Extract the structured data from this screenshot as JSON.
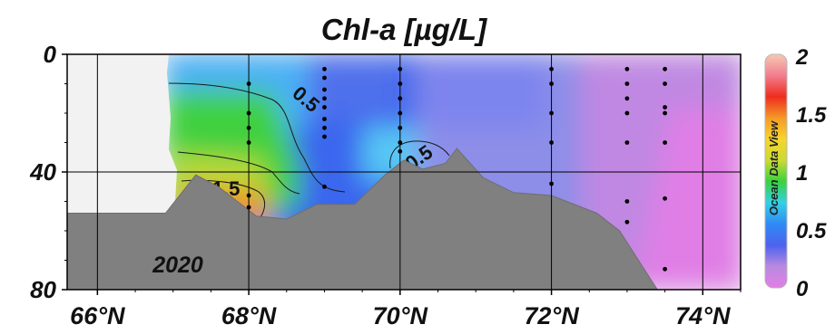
{
  "chart_data": {
    "type": "heatmap",
    "title": "Chl-a [µg/L]",
    "xlabel": "",
    "ylabel": "",
    "x_ticks": [
      "66°N",
      "68°N",
      "70°N",
      "72°N",
      "74°N"
    ],
    "x_tick_values": [
      66,
      68,
      70,
      72,
      74
    ],
    "y_ticks": [
      "0",
      "40",
      "80"
    ],
    "y_tick_values": [
      0,
      40,
      80
    ],
    "xlim": [
      65.6,
      74.5
    ],
    "ylim": [
      0,
      80
    ],
    "y_reversed": true,
    "grid": true,
    "year_label": "2020",
    "colorbar": {
      "ticks": [
        "0",
        "0.5",
        "1",
        "1.5",
        "2"
      ],
      "tick_values": [
        0,
        0.5,
        1,
        1.5,
        2
      ],
      "range": [
        0,
        2
      ],
      "label": "Ocean Data View",
      "colors": [
        "#e27ee6",
        "#b98ae0",
        "#4d62ee",
        "#2f8af5",
        "#33cfe6",
        "#3ad23e",
        "#c9da35",
        "#f6d52c",
        "#f59a27",
        "#ee2d1e",
        "#f27d8e",
        "#f7c9b4"
      ]
    },
    "contour_labels": [
      {
        "text": "0.5",
        "x": 68.7,
        "y": 17
      },
      {
        "text": "1.5",
        "x": 67.7,
        "y": 48
      },
      {
        "text": "0.5",
        "x": 70.3,
        "y": 37
      }
    ],
    "stations": [
      {
        "x": 68.0,
        "depths": [
          10,
          20,
          25,
          30,
          48,
          52
        ]
      },
      {
        "x": 69.0,
        "depths": [
          5,
          8,
          12,
          15,
          18,
          22,
          25,
          28,
          45
        ]
      },
      {
        "x": 70.0,
        "depths": [
          5,
          10,
          15,
          20,
          25,
          30,
          33
        ]
      },
      {
        "x": 72.0,
        "depths": [
          5,
          10,
          20,
          30,
          44
        ]
      },
      {
        "x": 73.0,
        "depths": [
          5,
          10,
          15,
          20,
          30,
          50,
          57
        ]
      },
      {
        "x": 73.5,
        "depths": [
          5,
          10,
          18,
          20,
          30,
          49,
          73
        ]
      }
    ],
    "bathymetry": [
      [
        65.6,
        54
      ],
      [
        66.9,
        54
      ],
      [
        67.3,
        41
      ],
      [
        67.6,
        45
      ],
      [
        68.1,
        55
      ],
      [
        68.5,
        56
      ],
      [
        68.9,
        51
      ],
      [
        69.4,
        51
      ],
      [
        69.8,
        41
      ],
      [
        70.05,
        36
      ],
      [
        70.3,
        39
      ],
      [
        70.6,
        37
      ],
      [
        70.75,
        32
      ],
      [
        71.1,
        42
      ],
      [
        71.5,
        47
      ],
      [
        72.0,
        48
      ],
      [
        72.4,
        52
      ],
      [
        72.6,
        54
      ],
      [
        72.9,
        60
      ],
      [
        73.2,
        72
      ],
      [
        73.4,
        80
      ]
    ]
  }
}
